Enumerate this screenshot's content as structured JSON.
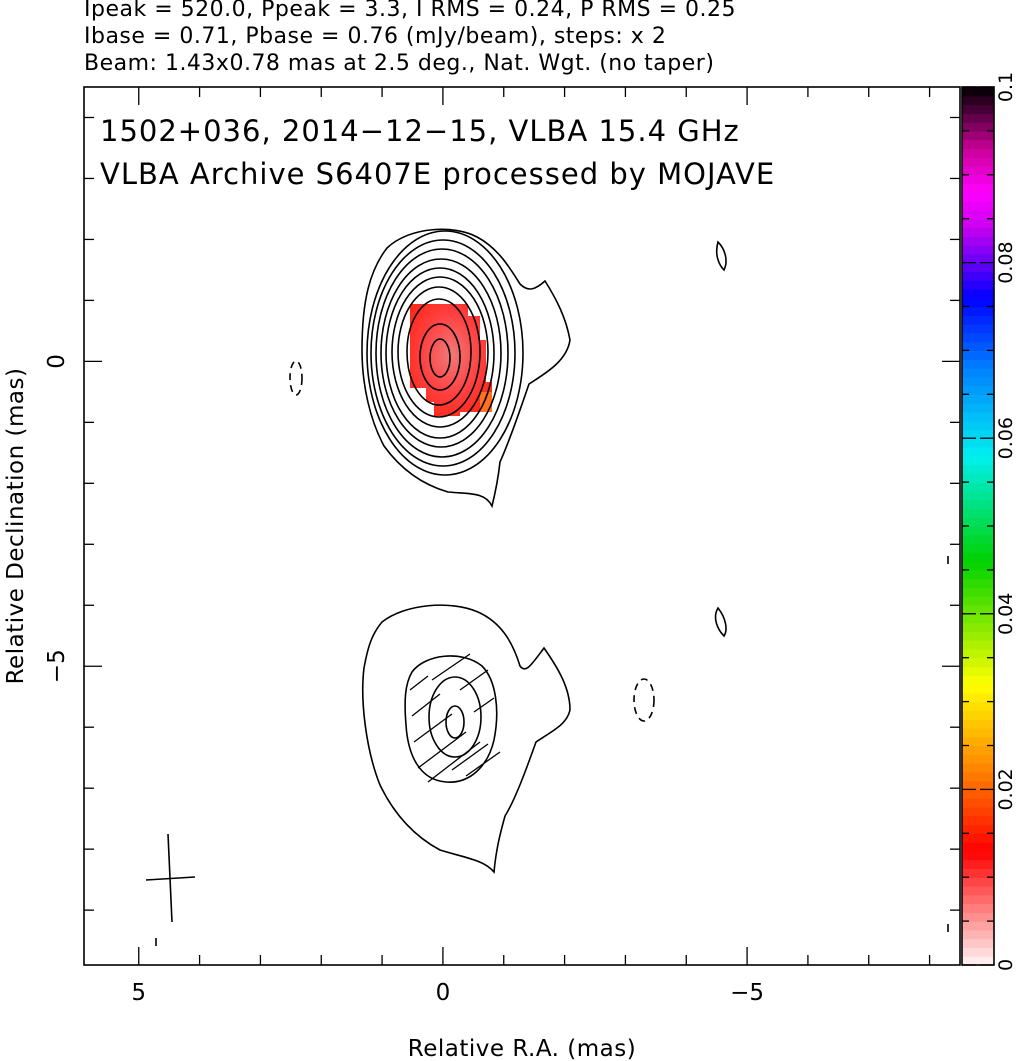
{
  "header": {
    "line1": "Ipeak = 520.0, Ppeak = 3.3, I RMS = 0.24, P RMS = 0.25",
    "line2": "Ibase = 0.71, Pbase = 0.76 (mJy/beam), steps: x 2",
    "line3": "Beam: 1.43x0.78 mas at 2.5 deg., Nat. Wgt. (no taper)"
  },
  "chart_data": {
    "type": "heatmap",
    "title_line1": "1502+036, 2014−12−15, VLBA 15.4 GHz",
    "title_line2": "VLBA Archive S6407E processed by MOJAVE",
    "xlabel": "Relative R.A. (mas)",
    "ylabel": "Relative Declination (mas)",
    "xlim": [
      5.9,
      -8.5
    ],
    "ylim": [
      -9.9,
      4.5
    ],
    "x_ticks": [
      5,
      0,
      -5
    ],
    "x_tick_labels": [
      "5",
      "0",
      "−5"
    ],
    "y_ticks": [
      0,
      -5
    ],
    "y_tick_labels": [
      "0",
      "−5"
    ],
    "colorbar": {
      "min": 0,
      "max": 0.1,
      "ticks": [
        0,
        0.02,
        0.04,
        0.06,
        0.08,
        0.1
      ],
      "tick_labels": [
        "0",
        "0.02",
        "0.04",
        "0.06",
        "0.08",
        "0.1"
      ]
    },
    "core": {
      "ra": 0.0,
      "dec": 0.0
    },
    "beam": {
      "major_mas": 1.43,
      "minor_mas": 0.78,
      "pa_deg": 2.5
    }
  }
}
